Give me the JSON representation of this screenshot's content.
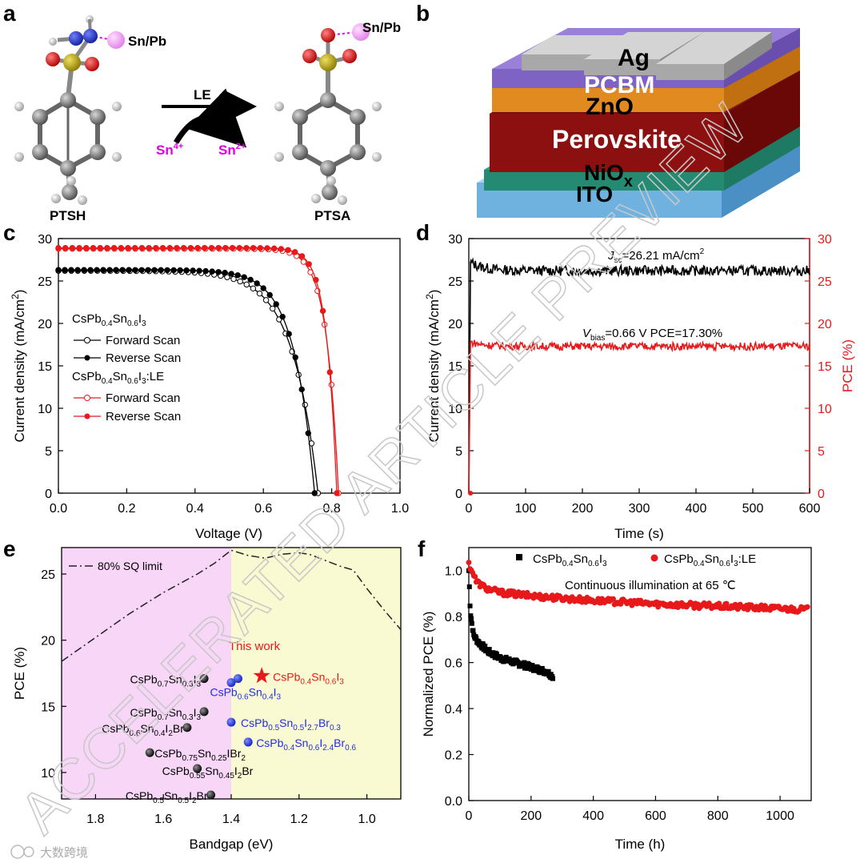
{
  "panel_labels": {
    "a": "a",
    "b": "b",
    "c": "c",
    "d": "d",
    "e": "e",
    "f": "f"
  },
  "colors": {
    "black": "#000000",
    "red": "#e8191a",
    "blue": "#1f2ee0",
    "magenta": "#e000e0",
    "pink_bg": "#f8d6f8",
    "yellow_bg": "#fafad2"
  },
  "panel_a": {
    "left_molecule": "PTSH",
    "right_molecule": "PTSA",
    "metal_label": "Sn/Pb",
    "arrow_label": "LE",
    "ox_base": "Sn",
    "ox_sup": "4+",
    "red_base": "Sn",
    "red_sup": "2+"
  },
  "panel_b": {
    "layers": {
      "ag": "Ag",
      "pcbm": "PCBM",
      "zno": "ZnO",
      "perovskite": "Perovskite",
      "nio": "NiO",
      "nio_sub": "x",
      "ito": "ITO"
    }
  },
  "watermark": "ACCELERATED ARTICLE PREVIEW",
  "credit": "大数跨境",
  "chart_data": [
    {
      "panel": "c",
      "type": "line",
      "xlabel": "Voltage (V)",
      "ylabel": {
        "base": "Current density (mA/cm",
        "sup": "2",
        "end": ")"
      },
      "xlim": [
        0,
        1.0
      ],
      "ylim": [
        0,
        30
      ],
      "xticks": [
        "0.0",
        "0.2",
        "0.4",
        "0.6",
        "0.8",
        "1.0"
      ],
      "yticks": [
        "0",
        "5",
        "10",
        "15",
        "20",
        "25",
        "30"
      ],
      "legend": {
        "group1": {
          "p1": "CsPb",
          "s1": "0.4",
          "p2": "Sn",
          "s2": "0.6",
          "p3": "I",
          "s3": "3",
          "p4": ""
        },
        "group2": {
          "p1": "CsPb",
          "s1": "0.4",
          "p2": "Sn",
          "s2": "0.6",
          "p3": "I",
          "s3": "3",
          "p4": ":LE"
        },
        "forward": "Forward Scan",
        "reverse": "Reverse Scan"
      },
      "series": [
        {
          "name": "CsPb0.4Sn0.6I3 Forward Scan",
          "color": "#000000",
          "marker": "open",
          "jsc": 26.2,
          "voc": 0.76,
          "v0": 0.35,
          "vt": 0.075
        },
        {
          "name": "CsPb0.4Sn0.6I3 Reverse Scan",
          "color": "#000000",
          "marker": "filled",
          "jsc": 26.3,
          "voc": 0.75,
          "v0": 0.43,
          "vt": 0.06
        },
        {
          "name": "CsPb0.4Sn0.6I3:LE Forward Scan",
          "color": "#e8191a",
          "marker": "open",
          "jsc": 28.8,
          "voc": 0.82,
          "v0": 0.62,
          "vt": 0.035
        },
        {
          "name": "CsPb0.4Sn0.6I3:LE Reverse Scan",
          "color": "#e8191a",
          "marker": "filled",
          "jsc": 28.9,
          "voc": 0.815,
          "v0": 0.64,
          "vt": 0.03
        }
      ]
    },
    {
      "panel": "d",
      "type": "line",
      "xlabel": "Time (s)",
      "ylabel": {
        "base": "Current density (mA/cm",
        "sup": "2",
        "end": ")"
      },
      "y2label": "PCE (%)",
      "xlim": [
        0,
        600
      ],
      "ylim": [
        0,
        30
      ],
      "y2lim": [
        0,
        30
      ],
      "xticks": [
        "0",
        "100",
        "200",
        "300",
        "400",
        "500",
        "600"
      ],
      "yticks": [
        "0",
        "5",
        "10",
        "15",
        "20",
        "25",
        "30"
      ],
      "annotations": {
        "jsc": {
          "base": "J",
          "sub": "sc",
          "rest": "=26.21 mA/cm",
          "sup": "2"
        },
        "vbias": {
          "base": "V",
          "sub": "bias",
          "rest": "=0.66 V PCE=17.30%"
        }
      },
      "series": [
        {
          "name": "Current density",
          "axis": "left",
          "color": "#000000",
          "initial": 27.2,
          "steady": 26.21
        },
        {
          "name": "PCE",
          "axis": "right",
          "color": "#e8191a",
          "initial": 17.8,
          "steady": 17.3
        }
      ]
    },
    {
      "panel": "e",
      "type": "scatter",
      "xlabel": "Bandgap (eV)",
      "ylabel": "PCE (%)",
      "xlim": [
        1.9,
        0.9
      ],
      "ylim": [
        8,
        27
      ],
      "xticks": [
        "1.8",
        "1.6",
        "1.4",
        "1.2",
        "1.0"
      ],
      "yticks": [
        "10",
        "15",
        "20",
        "25"
      ],
      "legend": "80% SQ limit",
      "this_work": "This work",
      "sq_limit": {
        "x": [
          1.9,
          1.8,
          1.7,
          1.6,
          1.5,
          1.45,
          1.4,
          1.35,
          1.3,
          1.25,
          1.2,
          1.17,
          1.12,
          1.08,
          1.04,
          1.0,
          0.95,
          0.9
        ],
        "y": [
          18.4,
          20.2,
          22.0,
          23.6,
          25.0,
          25.8,
          26.8,
          26.4,
          26.2,
          26.5,
          26.6,
          26.5,
          26.0,
          25.6,
          25.3,
          23.9,
          22.3,
          20.8
        ]
      },
      "points": [
        {
          "x": 1.48,
          "y": 17.1,
          "color": "#000000",
          "kind": "circle",
          "label": {
            "p1": "CsPb",
            "s1": "0.7",
            "p2": "Sn",
            "s2": "0.3",
            "p3": "I",
            "s3": "3",
            "p4": ""
          }
        },
        {
          "x": 1.48,
          "y": 14.6,
          "color": "#000000",
          "kind": "circle",
          "label": {
            "p1": "CsPb",
            "s1": "0.7",
            "p2": "Sn",
            "s2": "0.3",
            "p3": "I",
            "s3": "3",
            "p4": ""
          }
        },
        {
          "x": 1.53,
          "y": 13.4,
          "color": "#000000",
          "kind": "circle",
          "label": {
            "p1": "CsPb",
            "s1": "0.6",
            "p2": "Sn",
            "s2": "0.4",
            "p3": "I",
            "s3": "2",
            "p4": "Br"
          }
        },
        {
          "x": 1.64,
          "y": 11.5,
          "color": "#000000",
          "kind": "circle",
          "label": {
            "p1": "CsPb",
            "s1": "0.75",
            "p2": "Sn",
            "s2": "0.25",
            "p3": "IBr",
            "s3": "2",
            "p4": ""
          }
        },
        {
          "x": 1.5,
          "y": 10.3,
          "color": "#000000",
          "kind": "circle",
          "label": {
            "p1": "CsPb",
            "s1": "0.55",
            "p2": "Sn",
            "s2": "0.45",
            "p3": "I",
            "s3": "2",
            "p4": "Br"
          }
        },
        {
          "x": 1.46,
          "y": 8.3,
          "color": "#000000",
          "kind": "circle",
          "label": {
            "p1": "CsPb",
            "s1": "0.5",
            "p2": "Sn",
            "s2": "0.5",
            "p3": "I",
            "s3": "2",
            "p4": "Br"
          }
        },
        {
          "x": 1.4,
          "y": 16.8,
          "color": "#1f2ee0",
          "kind": "circle",
          "label": null
        },
        {
          "x": 1.38,
          "y": 17.1,
          "color": "#1f2ee0",
          "kind": "circle",
          "label": {
            "p1": "CsPb",
            "s1": "0.6",
            "p2": "Sn",
            "s2": "0.4",
            "p3": "I",
            "s3": "3",
            "p4": ""
          }
        },
        {
          "x": 1.4,
          "y": 13.8,
          "color": "#1f2ee0",
          "kind": "circle",
          "label": {
            "p1": "CsPb",
            "s1": "0.5",
            "p2": "Sn",
            "s2": "0.5",
            "p3": "I",
            "s3": "2.7",
            "p4": "Br",
            "s4": "0.3"
          }
        },
        {
          "x": 1.35,
          "y": 12.3,
          "color": "#1f2ee0",
          "kind": "circle",
          "label": {
            "p1": "CsPb",
            "s1": "0.4",
            "p2": "Sn",
            "s2": "0.6",
            "p3": "I",
            "s3": "2.4",
            "p4": "Br",
            "s4": "0.6"
          }
        },
        {
          "x": 1.31,
          "y": 17.3,
          "color": "#e8191a",
          "kind": "star",
          "label": {
            "p1": "CsPb",
            "s1": "0.4",
            "p2": "Sn",
            "s2": "0.6",
            "p3": "I",
            "s3": "3",
            "p4": ""
          }
        }
      ]
    },
    {
      "panel": "f",
      "type": "scatter",
      "xlabel": "Time (h)",
      "ylabel": "Normalized PCE (%)",
      "xlim": [
        0,
        1100
      ],
      "ylim": [
        0,
        1.1
      ],
      "xticks": [
        "0",
        "200",
        "400",
        "600",
        "800",
        "1000"
      ],
      "yticks": [
        "0.0",
        "0.2",
        "0.4",
        "0.6",
        "0.8",
        "1.0"
      ],
      "annotation": "Continuous illumination at 65 ℃",
      "legend": [
        {
          "p1": "CsPb",
          "s1": "0.4",
          "p2": "Sn",
          "s2": "0.6",
          "p3": "I",
          "s3": "3",
          "p4": ""
        },
        {
          "p1": "CsPb",
          "s1": "0.4",
          "p2": "Sn",
          "s2": "0.6",
          "p3": "I",
          "s3": "3",
          "p4": ":LE"
        }
      ],
      "series": [
        {
          "name": "CsPb0.4Sn0.6I3",
          "color": "#000000",
          "marker": "square",
          "x_end": 270,
          "key_x": [
            0,
            5,
            15,
            30,
            60,
            100,
            150,
            200,
            250,
            270
          ],
          "key_y": [
            1.0,
            0.82,
            0.72,
            0.69,
            0.65,
            0.62,
            0.6,
            0.58,
            0.56,
            0.54
          ]
        },
        {
          "name": "CsPb0.4Sn0.6I3:LE",
          "color": "#e8191a",
          "marker": "circle",
          "x_end": 1090,
          "key_x": [
            0,
            10,
            25,
            60,
            100,
            200,
            400,
            600,
            800,
            1000,
            1090
          ],
          "key_y": [
            1.03,
            1.0,
            0.95,
            0.92,
            0.905,
            0.89,
            0.87,
            0.855,
            0.845,
            0.835,
            0.83
          ]
        }
      ]
    }
  ]
}
